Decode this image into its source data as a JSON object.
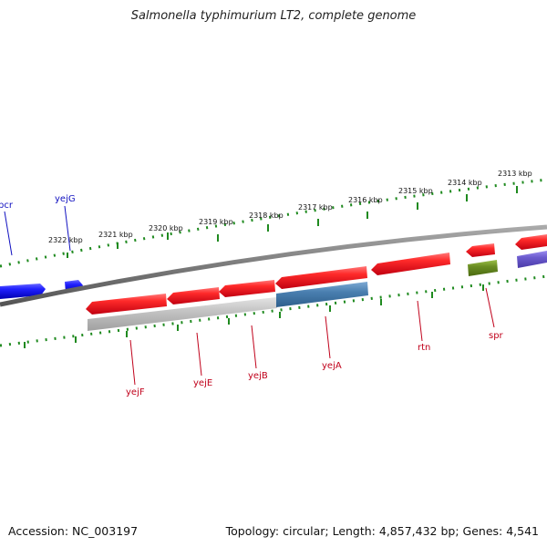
{
  "title": "Salmonella typhimurium LT2, complete genome",
  "footer": {
    "accession": "Accession: NC_003197",
    "summary": "Topology: circular; Length: 4,857,432 bp; Genes: 4,541"
  },
  "colors": {
    "red": "#e41a1a",
    "blue": "#1f1ff0",
    "steel": "#4a7fb0",
    "olive": "#6b8e23",
    "violet": "#6a5acd",
    "gray": "#c0c0c0",
    "tick": "#1f8a1f",
    "label_red": "#c0001a",
    "label_blue": "#1010c0",
    "backbone": "#888888"
  },
  "scale_labels": [
    "2322 kbp",
    "2321 kbp",
    "2320 kbp",
    "2319 kbp",
    "2318 kbp",
    "2317 kbp",
    "2316 kbp",
    "2315 kbp",
    "2314 kbp",
    "2313 kbp"
  ],
  "gene_labels": [
    {
      "name": "bcr",
      "color": "blue"
    },
    {
      "name": "yejG",
      "color": "blue"
    },
    {
      "name": "yejF",
      "color": "red"
    },
    {
      "name": "yejE",
      "color": "red"
    },
    {
      "name": "yejB",
      "color": "red"
    },
    {
      "name": "yejA",
      "color": "red"
    },
    {
      "name": "rtn",
      "color": "red"
    },
    {
      "name": "spr",
      "color": "red"
    }
  ]
}
